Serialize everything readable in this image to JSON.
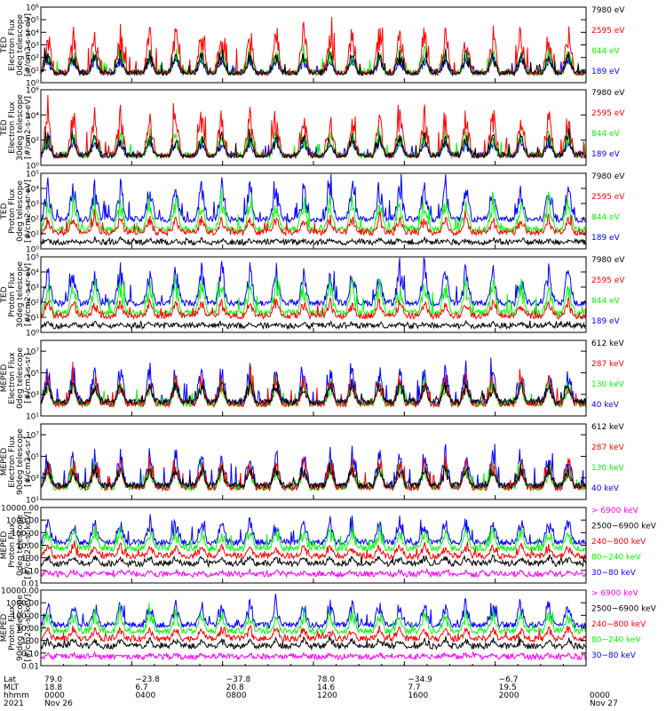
{
  "chart_data": [
    {
      "type": "line",
      "scale": "log",
      "ylim": [
        1,
        1000000
      ],
      "ylabel": [
        "TED",
        "Electron Flux",
        "0deg telescope",
        "[#/cm2-s-sr-eV]"
      ],
      "yticks": [
        {
          "v": 1,
          "label": "10⁰"
        },
        {
          "v": 10,
          "label": "10¹"
        },
        {
          "v": 100,
          "label": "10²"
        },
        {
          "v": 1000,
          "label": "10³"
        },
        {
          "v": 10000,
          "label": "10⁴"
        },
        {
          "v": 100000,
          "label": "10⁵"
        },
        {
          "v": 1000000,
          "label": "10⁶"
        }
      ],
      "series": [
        {
          "name": "7980 eV",
          "color": "#000000"
        },
        {
          "name": "2595 eV",
          "color": "#ff0000"
        },
        {
          "name": "844 eV",
          "color": "#00ff00"
        },
        {
          "name": "189 eV",
          "color": "#0000ff"
        }
      ]
    },
    {
      "type": "line",
      "scale": "log",
      "ylim": [
        1,
        1000000
      ],
      "ylabel": [
        "TED",
        "Electron Flux",
        "30deg telescope",
        "[#/cm2-s-sr-eV]"
      ],
      "yticks": [
        {
          "v": 1,
          "label": "10⁰"
        },
        {
          "v": 100,
          "label": "10²"
        },
        {
          "v": 10000,
          "label": "10⁴"
        },
        {
          "v": 1000000,
          "label": "10⁶"
        }
      ],
      "series": [
        {
          "name": "7980 eV",
          "color": "#000000"
        },
        {
          "name": "2595 eV",
          "color": "#ff0000"
        },
        {
          "name": "844 eV",
          "color": "#00ff00"
        },
        {
          "name": "189 eV",
          "color": "#0000ff"
        }
      ]
    },
    {
      "type": "line",
      "scale": "log",
      "ylim": [
        1,
        100000
      ],
      "ylabel": [
        "TED",
        "Proton Flux",
        "0deg telescope",
        "[#/cm2-s-sr-eV]"
      ],
      "yticks": [
        {
          "v": 1,
          "label": "10⁰"
        },
        {
          "v": 10,
          "label": "10¹"
        },
        {
          "v": 100,
          "label": "10²"
        },
        {
          "v": 1000,
          "label": "10³"
        },
        {
          "v": 10000,
          "label": "10⁴"
        },
        {
          "v": 100000,
          "label": "10⁵"
        }
      ],
      "series": [
        {
          "name": "7980 eV",
          "color": "#000000"
        },
        {
          "name": "2595 eV",
          "color": "#ff0000"
        },
        {
          "name": "844 eV",
          "color": "#00ff00"
        },
        {
          "name": "189 eV",
          "color": "#0000ff"
        }
      ]
    },
    {
      "type": "line",
      "scale": "log",
      "ylim": [
        1,
        100000
      ],
      "ylabel": [
        "TED",
        "Proton Flux",
        "30deg telescope",
        "[#/cm2-s-sr-eV]"
      ],
      "yticks": [
        {
          "v": 1,
          "label": "10⁰"
        },
        {
          "v": 10,
          "label": "10¹"
        },
        {
          "v": 100,
          "label": "10²"
        },
        {
          "v": 1000,
          "label": "10³"
        },
        {
          "v": 10000,
          "label": "10⁴"
        },
        {
          "v": 100000,
          "label": "10⁵"
        }
      ],
      "series": [
        {
          "name": "7980 eV",
          "color": "#000000"
        },
        {
          "name": "2595 eV",
          "color": "#ff0000"
        },
        {
          "name": "844 eV",
          "color": "#00ff00"
        },
        {
          "name": "189 eV",
          "color": "#0000ff"
        }
      ]
    },
    {
      "type": "line",
      "scale": "log",
      "ylim": [
        10,
        100000000
      ],
      "ylabel": [
        "MEPED",
        "Electron Flux",
        "0deg telescope",
        "[#/cm2-s-sr]"
      ],
      "yticks": [
        {
          "v": 10,
          "label": "10¹"
        },
        {
          "v": 1000,
          "label": "10³"
        },
        {
          "v": 100000,
          "label": "10⁵"
        },
        {
          "v": 10000000,
          "label": "10⁷"
        }
      ],
      "series": [
        {
          "name": "612 keV",
          "color": "#000000"
        },
        {
          "name": "287 keV",
          "color": "#ff0000"
        },
        {
          "name": "130 keV",
          "color": "#00ff00"
        },
        {
          "name": "40 keV",
          "color": "#0000ff"
        }
      ]
    },
    {
      "type": "line",
      "scale": "log",
      "ylim": [
        10,
        100000000
      ],
      "ylabel": [
        "MEPED",
        "Electron Flux",
        "90deg telescope",
        "[#/cm2-s-sr]"
      ],
      "yticks": [
        {
          "v": 10,
          "label": "10¹"
        },
        {
          "v": 1000,
          "label": "10³"
        },
        {
          "v": 100000,
          "label": "10⁵"
        },
        {
          "v": 10000000,
          "label": "10⁷"
        }
      ],
      "series": [
        {
          "name": "612 keV",
          "color": "#000000"
        },
        {
          "name": "287 keV",
          "color": "#ff0000"
        },
        {
          "name": "130 keV",
          "color": "#00ff00"
        },
        {
          "name": "40 keV",
          "color": "#0000ff"
        }
      ]
    },
    {
      "type": "line",
      "scale": "log",
      "ylim": [
        0.01,
        10000
      ],
      "ylabel": [
        "MEPED",
        "Proton Flux",
        "0deg telescope",
        "[#/cm2-s-sr-keV]"
      ],
      "yticks": [
        {
          "v": 0.01,
          "label": "0.01"
        },
        {
          "v": 0.1,
          "label": "0.10"
        },
        {
          "v": 1,
          "label": "1.00"
        },
        {
          "v": 10,
          "label": "10.00"
        },
        {
          "v": 100,
          "label": "100.00"
        },
        {
          "v": 1000,
          "label": "1000.00"
        },
        {
          "v": 10000,
          "label": "10000.00"
        }
      ],
      "series": [
        {
          "name": "> 6900 keV",
          "color": "#ff00ff"
        },
        {
          "name": "2500−6900 keV",
          "color": "#000000"
        },
        {
          "name": "240−800 keV",
          "color": "#ff0000"
        },
        {
          "name": "80−240 keV",
          "color": "#00ff00"
        },
        {
          "name": "30−80 keV",
          "color": "#0000ff"
        }
      ]
    },
    {
      "type": "line",
      "scale": "log",
      "ylim": [
        0.01,
        10000
      ],
      "ylabel": [
        "MEPED",
        "Proton Flux",
        "90deg telescope",
        "[#/cm2-s-sr-keV]"
      ],
      "yticks": [
        {
          "v": 0.01,
          "label": "0.01"
        },
        {
          "v": 0.1,
          "label": "0.10"
        },
        {
          "v": 1,
          "label": "1.00"
        },
        {
          "v": 10,
          "label": "10.00"
        },
        {
          "v": 100,
          "label": "100.00"
        },
        {
          "v": 1000,
          "label": "1000.00"
        },
        {
          "v": 10000,
          "label": "10000.00"
        }
      ],
      "series": [
        {
          "name": "> 6900 keV",
          "color": "#ff00ff"
        },
        {
          "name": "2500−6900 keV",
          "color": "#000000"
        },
        {
          "name": "240−800 keV",
          "color": "#ff0000"
        },
        {
          "name": "80−240 keV",
          "color": "#00ff00"
        },
        {
          "name": "30−80 keV",
          "color": "#0000ff"
        }
      ]
    }
  ],
  "time_axis": {
    "row_labels": [
      "Lat",
      "MLT",
      "hhmm",
      "2021"
    ],
    "ticks": [
      {
        "hour": 0,
        "lat": "79.0",
        "mlt": "18.8",
        "hhmm": "0000",
        "date": "Nov 26"
      },
      {
        "hour": 4,
        "lat": "−23.8",
        "mlt": "6.7",
        "hhmm": "0400",
        "date": ""
      },
      {
        "hour": 8,
        "lat": "−37.8",
        "mlt": "20.8",
        "hhmm": "0800",
        "date": ""
      },
      {
        "hour": 12,
        "lat": "78.0",
        "mlt": "14.6",
        "hhmm": "1200",
        "date": ""
      },
      {
        "hour": 16,
        "lat": "−34.9",
        "mlt": "7.7",
        "hhmm": "1600",
        "date": ""
      },
      {
        "hour": 20,
        "lat": "−6.7",
        "mlt": "19.5",
        "hhmm": "2000",
        "date": ""
      },
      {
        "hour": 24,
        "lat": "",
        "mlt": "",
        "hhmm": "0000",
        "date": "Nov 27"
      }
    ]
  }
}
